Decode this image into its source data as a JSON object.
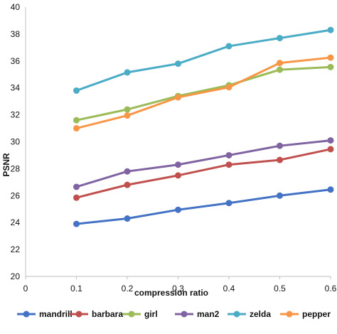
{
  "chart_data": {
    "type": "line",
    "title": "",
    "xlabel": "compression ratio",
    "ylabel": "PSNR",
    "x": [
      0.1,
      0.2,
      0.3,
      0.4,
      0.5,
      0.6
    ],
    "x_ticks": [
      "0",
      "0.1",
      "0.2",
      "0.3",
      "0.4",
      "0.5",
      "0.6"
    ],
    "y_ticks": [
      "20",
      "22",
      "24",
      "26",
      "28",
      "30",
      "32",
      "34",
      "36",
      "38",
      "40"
    ],
    "xlim": [
      0,
      0.6
    ],
    "ylim": [
      20,
      40
    ],
    "grid": false,
    "legend_position": "bottom",
    "series": [
      {
        "name": "mandrill",
        "color": "#4472c4",
        "values": [
          23.9,
          24.3,
          24.95,
          25.45,
          26.0,
          26.45
        ]
      },
      {
        "name": "barbara",
        "color": "#c0504d",
        "values": [
          25.85,
          26.8,
          27.5,
          28.3,
          28.65,
          29.45
        ]
      },
      {
        "name": "girl",
        "color": "#9bbb59",
        "values": [
          31.6,
          32.4,
          33.4,
          34.2,
          35.35,
          35.55
        ]
      },
      {
        "name": "man2",
        "color": "#8064a2",
        "values": [
          26.65,
          27.8,
          28.3,
          29.0,
          29.7,
          30.1
        ]
      },
      {
        "name": "zelda",
        "color": "#4bacc6",
        "values": [
          33.8,
          35.15,
          35.8,
          37.1,
          37.7,
          38.3
        ]
      },
      {
        "name": "pepper",
        "color": "#f79646",
        "values": [
          31.0,
          31.95,
          33.3,
          34.05,
          35.85,
          36.25
        ]
      }
    ]
  }
}
